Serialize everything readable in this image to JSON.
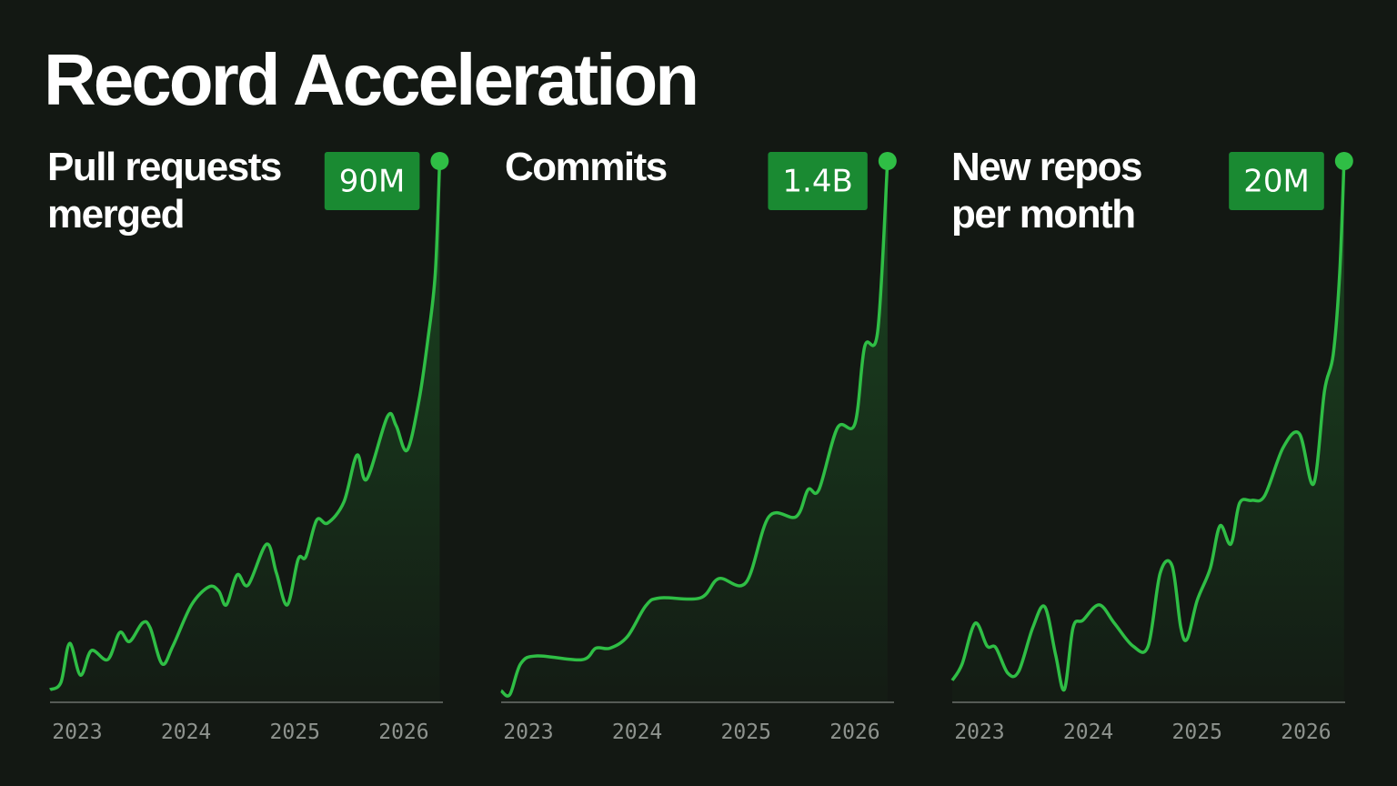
{
  "title": "Record Acceleration",
  "chart_data": [
    {
      "type": "line",
      "title": "Pull requests merged",
      "color": "#2fbe45",
      "x": [
        2022.75,
        2022.85,
        2022.93,
        2023.03,
        2023.13,
        2023.28,
        2023.39,
        2023.48,
        2023.6,
        2023.67,
        2023.78,
        2023.88,
        2024.05,
        2024.21,
        2024.3,
        2024.37,
        2024.47,
        2024.57,
        2024.74,
        2024.83,
        2024.93,
        2025.03,
        2025.1,
        2025.2,
        2025.3,
        2025.45,
        2025.57,
        2025.66,
        2025.85,
        2025.93,
        2026.03,
        2026.14,
        2026.22,
        2026.29,
        2026.33
      ],
      "values": [
        2.1,
        3.3,
        9.8,
        4.5,
        8.6,
        7.1,
        11.6,
        10.1,
        13.2,
        12.4,
        6.4,
        9.4,
        16.2,
        19.2,
        18.5,
        16.2,
        21.2,
        19.5,
        26.3,
        21.5,
        16.2,
        23.8,
        24.2,
        30.3,
        29.8,
        33.3,
        41.1,
        37.1,
        47.5,
        46.0,
        41.9,
        50.2,
        60.1,
        71.4,
        90
      ],
      "value_labels": [
        null,
        null,
        null,
        null,
        null,
        null,
        null,
        null,
        null,
        null,
        null,
        null,
        null,
        null,
        null,
        null,
        null,
        null,
        null,
        null,
        null,
        null,
        null,
        null,
        null,
        null,
        null,
        null,
        null,
        null,
        null,
        null,
        null,
        null,
        "90M"
      ],
      "xlim": [
        2022.75,
        2026.36
      ],
      "xticks": [
        2023,
        2024,
        2025,
        2026
      ],
      "ylim": [
        0,
        90
      ]
    },
    {
      "type": "line",
      "title": "Commits",
      "color": "#2fbe45",
      "x": [
        2022.75,
        2022.83,
        2022.93,
        2023.08,
        2023.49,
        2023.62,
        2023.75,
        2023.91,
        2024.08,
        2024.21,
        2024.58,
        2024.75,
        2025.0,
        2025.21,
        2025.46,
        2025.57,
        2025.67,
        2025.84,
        2026.0,
        2026.09,
        2026.21,
        2026.3
      ],
      "values": [
        0.03,
        0.02,
        0.1,
        0.12,
        0.11,
        0.14,
        0.14,
        0.17,
        0.25,
        0.27,
        0.27,
        0.32,
        0.31,
        0.48,
        0.48,
        0.55,
        0.55,
        0.71,
        0.72,
        0.92,
        0.96,
        1.4
      ],
      "value_labels": [
        null,
        null,
        null,
        null,
        null,
        null,
        null,
        null,
        null,
        null,
        null,
        null,
        null,
        null,
        null,
        null,
        null,
        null,
        null,
        null,
        null,
        "1.4B"
      ],
      "xlim": [
        2022.75,
        2026.36
      ],
      "xticks": [
        2023,
        2024,
        2025,
        2026
      ],
      "ylim": [
        0,
        1.4
      ]
    },
    {
      "type": "line",
      "title": "New repos per month",
      "color": "#2fbe45",
      "x": [
        2022.75,
        2022.84,
        2022.96,
        2023.07,
        2023.15,
        2023.26,
        2023.36,
        2023.49,
        2023.6,
        2023.7,
        2023.78,
        2023.86,
        2023.95,
        2024.1,
        2024.24,
        2024.41,
        2024.55,
        2024.66,
        2024.77,
        2024.85,
        2024.91,
        2025.0,
        2025.12,
        2025.21,
        2025.31,
        2025.39,
        2025.5,
        2025.62,
        2025.79,
        2025.94,
        2026.07,
        2026.17,
        2026.25,
        2026.31,
        2026.35
      ],
      "values": [
        0.81,
        1.41,
        2.92,
        2.08,
        2.02,
        1.08,
        1.14,
        2.76,
        3.53,
        1.75,
        0.47,
        2.76,
        3.03,
        3.6,
        2.92,
        2.08,
        2.08,
        4.77,
        5.04,
        2.76,
        2.35,
        3.76,
        4.94,
        6.52,
        5.85,
        7.36,
        7.46,
        7.63,
        9.41,
        9.92,
        8.07,
        11.5,
        12.84,
        15.87,
        20
      ],
      "value_labels": [
        null,
        null,
        null,
        null,
        null,
        null,
        null,
        null,
        null,
        null,
        null,
        null,
        null,
        null,
        null,
        null,
        null,
        null,
        null,
        null,
        null,
        null,
        null,
        null,
        null,
        null,
        null,
        null,
        null,
        null,
        null,
        null,
        null,
        null,
        "20M"
      ],
      "xlim": [
        2022.75,
        2026.36
      ],
      "xticks": [
        2023,
        2024,
        2025,
        2026
      ],
      "ylim": [
        0,
        20
      ]
    }
  ]
}
